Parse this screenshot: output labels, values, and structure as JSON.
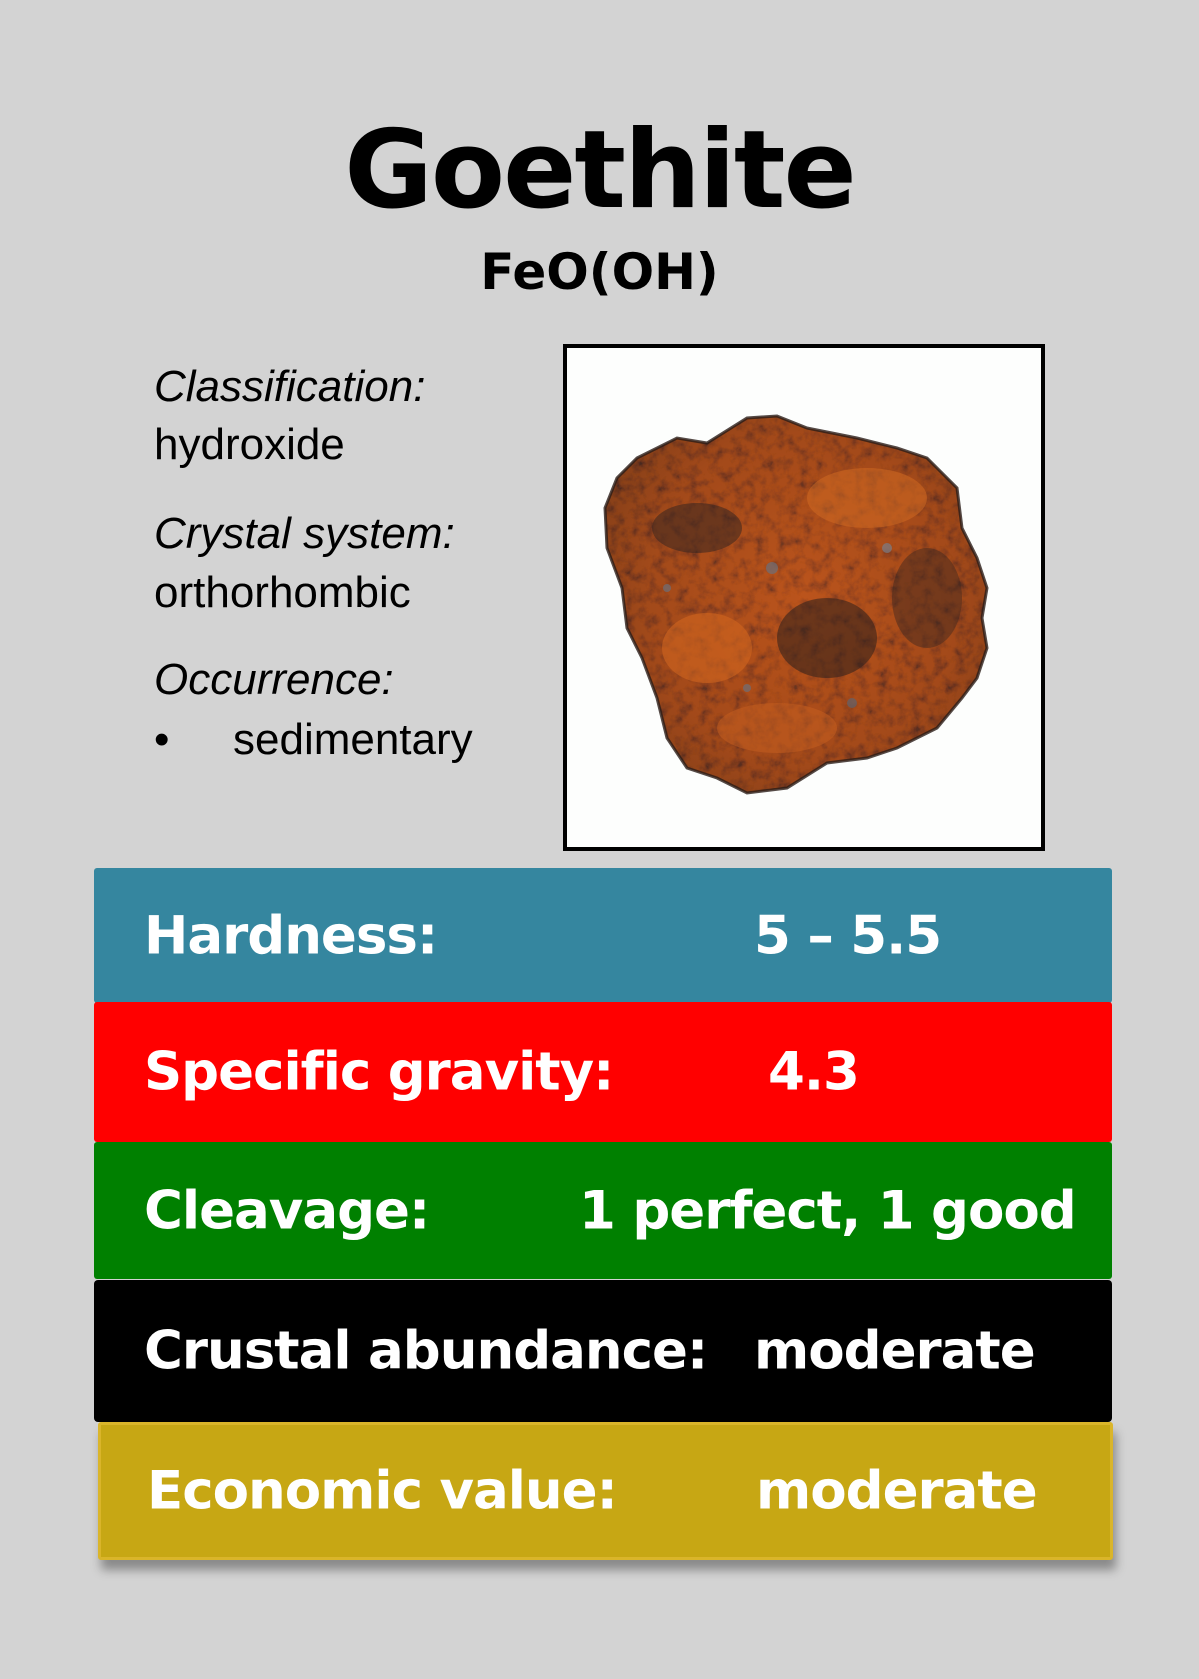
{
  "mineral": {
    "name": "Goethite",
    "formula": "FeO(OH)"
  },
  "details": {
    "classification_label": "Classification:",
    "classification_value": "hydroxide",
    "crystal_system_label": "Crystal system:",
    "crystal_system_value": "orthorhombic",
    "occurrence_label": "Occurrence:",
    "occurrence_bullet": "•",
    "occurrence_items": [
      "sedimentary"
    ]
  },
  "properties": [
    {
      "label": "Hardness:",
      "value": "5 – 5.5",
      "color": "#35869f"
    },
    {
      "label": "Specific gravity:",
      "value": "4.3",
      "color": "#ff0000"
    },
    {
      "label": "Cleavage:",
      "value": "1 perfect, 1 good",
      "color": "#008000"
    },
    {
      "label": "Crustal abundance:",
      "value": "moderate",
      "color": "#000000"
    },
    {
      "label": "Economic value:",
      "value": "moderate",
      "color": "#c7a714"
    }
  ],
  "image": {
    "icon": "goethite-specimen-photo"
  }
}
